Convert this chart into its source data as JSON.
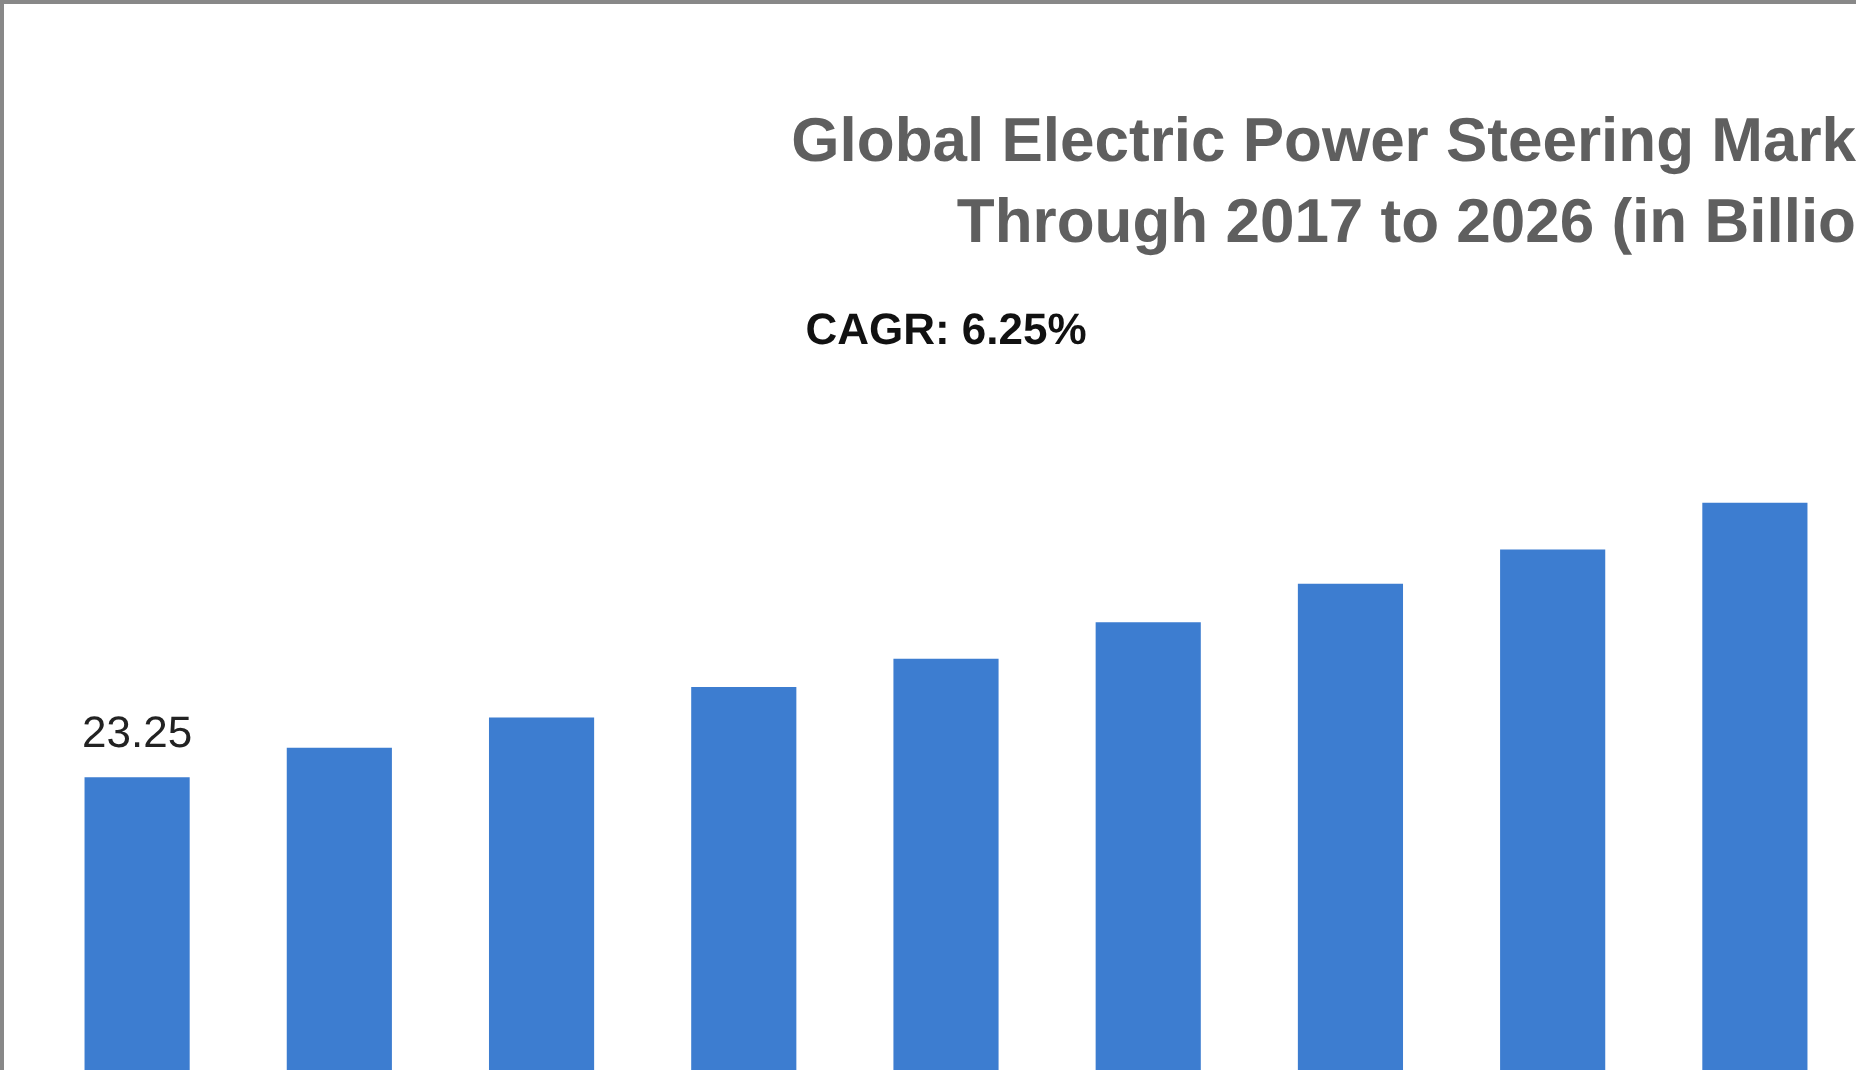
{
  "chart_data": {
    "type": "bar",
    "title": "Global Electric Power Steering Mark\nThrough 2017 to 2026 (in Billio",
    "subtitle": "CAGR: 6.25%",
    "categories": [
      null,
      null,
      null,
      null,
      null,
      null,
      null,
      null,
      null
    ],
    "values": [
      23.25,
      24.7,
      26.2,
      27.7,
      29.1,
      30.9,
      32.8,
      34.5,
      36.8
    ],
    "value_labels": [
      "23.25",
      null,
      null,
      null,
      null,
      null,
      null,
      null,
      null
    ],
    "color": "#3d7dd0",
    "tick_labels": false
  }
}
